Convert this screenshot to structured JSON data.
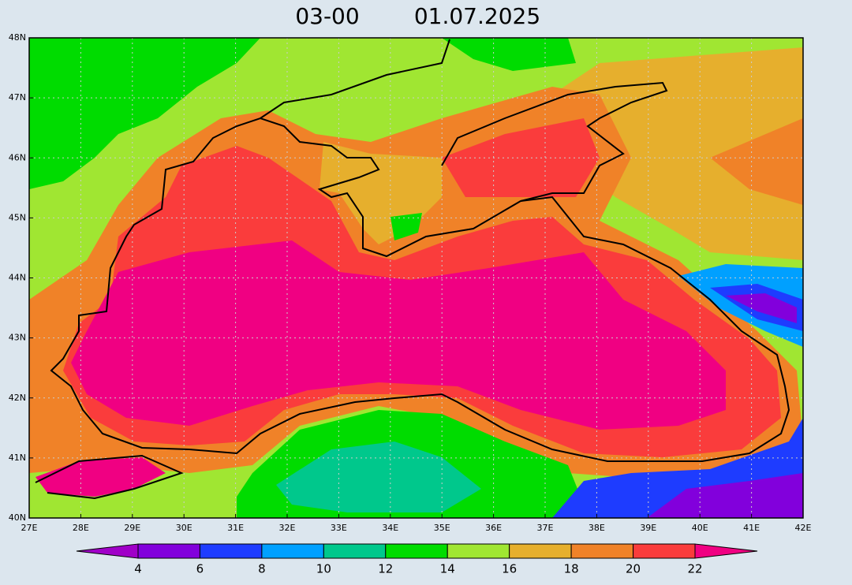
{
  "header": {
    "time": "03-00",
    "date": "01.07.2025"
  },
  "axes": {
    "lat_ticks": [
      "40N",
      "41N",
      "42N",
      "43N",
      "44N",
      "45N",
      "46N",
      "47N",
      "48N"
    ],
    "lon_ticks": [
      "27E",
      "28E",
      "29E",
      "30E",
      "31E",
      "32E",
      "33E",
      "34E",
      "35E",
      "36E",
      "37E",
      "38E",
      "39E",
      "40E",
      "41E",
      "42E"
    ]
  },
  "colorbar": {
    "levels": [
      4,
      6,
      8,
      10,
      12,
      14,
      16,
      18,
      20,
      22
    ],
    "colors": [
      "#a000c8",
      "#8200dc",
      "#1e3cff",
      "#00a0ff",
      "#00c88c",
      "#00dc00",
      "#a0e632",
      "#e6af2d",
      "#f08228",
      "#fa3c3c",
      "#f00082"
    ]
  }
}
